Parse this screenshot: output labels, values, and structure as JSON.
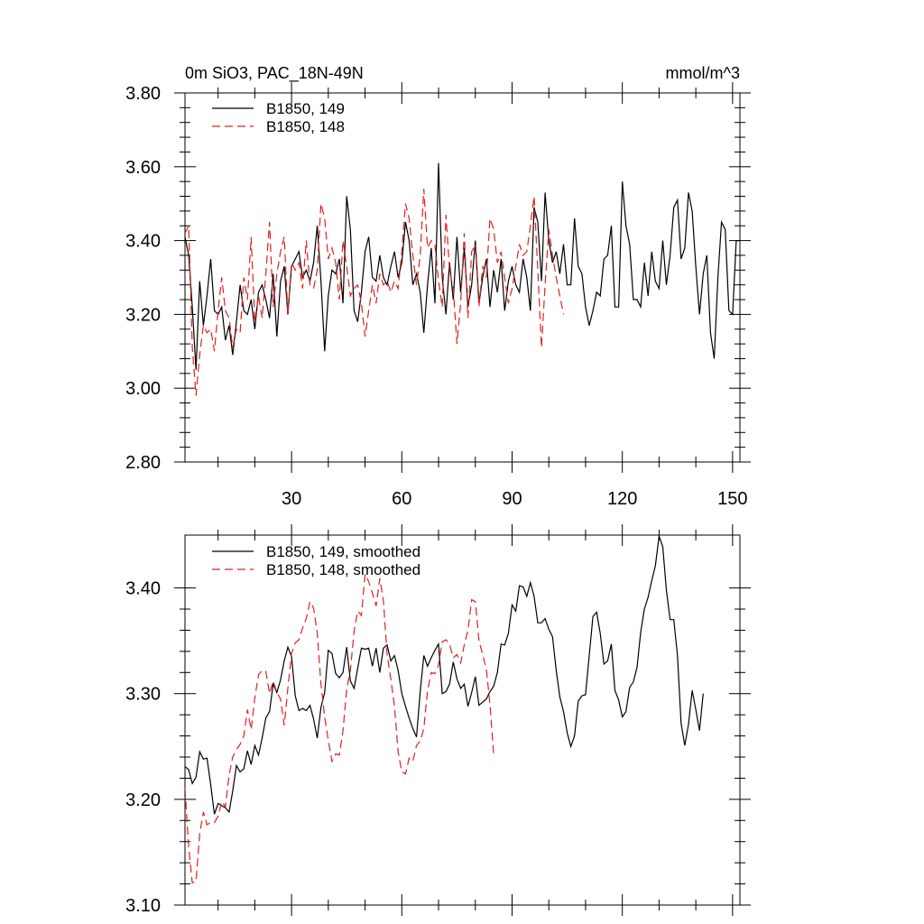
{
  "chart_data": [
    {
      "type": "line",
      "title_left": "0m SiO3, PAC_18N-49N",
      "title_right": "mmol/m^3",
      "xlabel": "",
      "ylabel": "",
      "xlim": [
        1,
        152
      ],
      "ylim": [
        2.8,
        3.8
      ],
      "x_ticks": [
        30,
        60,
        90,
        120,
        150
      ],
      "x_tick_labels": [
        "30",
        "60",
        "90",
        "120",
        "150"
      ],
      "y_ticks": [
        2.8,
        3.0,
        3.2,
        3.4,
        3.6,
        3.8
      ],
      "y_tick_labels": [
        "2.80",
        "3.00",
        "3.20",
        "3.40",
        "3.60",
        "3.80"
      ],
      "legend_position": "top-left",
      "series": [
        {
          "name": "B1850, 149",
          "color": "#000000",
          "dash": "solid",
          "values": [
            3.41,
            3.36,
            3.22,
            3.05,
            3.29,
            3.17,
            3.25,
            3.35,
            3.21,
            3.2,
            3.22,
            3.13,
            3.17,
            3.09,
            3.18,
            3.28,
            3.21,
            3.2,
            3.24,
            3.16,
            3.26,
            3.28,
            3.24,
            3.19,
            3.31,
            3.14,
            3.29,
            3.33,
            3.2,
            3.33,
            3.35,
            3.37,
            3.3,
            3.32,
            3.29,
            3.34,
            3.44,
            3.29,
            3.1,
            3.25,
            3.32,
            3.31,
            3.35,
            3.23,
            3.52,
            3.43,
            3.21,
            3.18,
            3.26,
            3.37,
            3.41,
            3.3,
            3.29,
            3.36,
            3.3,
            3.28,
            3.33,
            3.37,
            3.3,
            3.34,
            3.45,
            3.4,
            3.28,
            3.31,
            3.26,
            3.15,
            3.28,
            3.38,
            3.23,
            3.61,
            3.3,
            3.2,
            3.34,
            3.24,
            3.41,
            3.26,
            3.38,
            3.22,
            3.28,
            3.4,
            3.23,
            3.3,
            3.35,
            3.22,
            3.32,
            3.26,
            3.35,
            3.21,
            3.29,
            3.33,
            3.28,
            3.26,
            3.35,
            3.3,
            3.21,
            3.49,
            3.45,
            3.29,
            3.53,
            3.4,
            3.34,
            3.37,
            3.31,
            3.39,
            3.28,
            3.28,
            3.46,
            3.33,
            3.31,
            3.22,
            3.17,
            3.21,
            3.26,
            3.25,
            3.35,
            3.36,
            3.44,
            3.22,
            3.22,
            3.56,
            3.44,
            3.39,
            3.24,
            3.24,
            3.22,
            3.34,
            3.25,
            3.37,
            3.29,
            3.27,
            3.4,
            3.28,
            3.36,
            3.49,
            3.51,
            3.35,
            3.38,
            3.53,
            3.48,
            3.33,
            3.2,
            3.31,
            3.36,
            3.15,
            3.08,
            3.3,
            3.45,
            3.43,
            3.21,
            3.2,
            3.4,
            3.4
          ]
        },
        {
          "name": "B1850, 148",
          "color": "#e0201e",
          "dash": "dashed",
          "values": [
            3.42,
            3.44,
            3.11,
            2.98,
            3.09,
            3.17,
            3.15,
            3.16,
            3.1,
            3.21,
            3.3,
            3.21,
            3.19,
            3.11,
            3.16,
            3.15,
            3.3,
            3.24,
            3.41,
            3.18,
            3.25,
            3.19,
            3.31,
            3.45,
            3.22,
            3.31,
            3.37,
            3.41,
            3.2,
            3.34,
            3.32,
            3.34,
            3.27,
            3.4,
            3.28,
            3.27,
            3.32,
            3.5,
            3.46,
            3.35,
            3.38,
            3.34,
            3.24,
            3.4,
            3.33,
            3.25,
            3.27,
            3.28,
            3.23,
            3.14,
            3.21,
            3.28,
            3.23,
            3.31,
            3.28,
            3.29,
            3.26,
            3.29,
            3.27,
            3.37,
            3.5,
            3.46,
            3.36,
            3.28,
            3.36,
            3.54,
            3.38,
            3.4,
            3.39,
            3.29,
            3.22,
            3.47,
            3.32,
            3.27,
            3.12,
            3.23,
            3.42,
            3.19,
            3.37,
            3.39,
            3.22,
            3.33,
            3.3,
            3.46,
            3.43,
            3.34,
            3.37,
            3.3,
            3.23,
            3.27,
            3.33,
            3.39,
            3.36,
            3.37,
            3.44,
            3.52,
            3.32,
            3.11,
            3.28,
            3.43,
            3.36,
            3.3,
            3.25,
            3.2
          ]
        }
      ]
    },
    {
      "type": "line",
      "title_left": "",
      "title_right": "",
      "xlabel": "",
      "ylabel": "",
      "xlim": [
        1,
        152
      ],
      "ylim": [
        3.1,
        3.45
      ],
      "x_ticks": [
        30,
        60,
        90,
        120,
        150
      ],
      "x_tick_labels": [],
      "y_ticks": [
        3.1,
        3.2,
        3.3,
        3.4
      ],
      "y_tick_labels": [
        "3.10",
        "3.20",
        "3.30",
        "3.40"
      ],
      "legend_position": "top-left",
      "series": [
        {
          "name": "B1850, 149, smoothed",
          "color": "#000000",
          "dash": "solid",
          "values": [
            3.231,
            3.228,
            3.215,
            3.221,
            3.245,
            3.238,
            3.239,
            3.214,
            3.186,
            3.196,
            3.194,
            3.192,
            3.188,
            3.208,
            3.232,
            3.226,
            3.229,
            3.246,
            3.233,
            3.251,
            3.242,
            3.258,
            3.277,
            3.283,
            3.309,
            3.301,
            3.313,
            3.331,
            3.344,
            3.335,
            3.298,
            3.284,
            3.286,
            3.284,
            3.289,
            3.276,
            3.258,
            3.287,
            3.301,
            3.341,
            3.338,
            3.319,
            3.315,
            3.32,
            3.344,
            3.312,
            3.305,
            3.324,
            3.343,
            3.342,
            3.343,
            3.326,
            3.343,
            3.32,
            3.343,
            3.346,
            3.331,
            3.336,
            3.322,
            3.3,
            3.288,
            3.277,
            3.267,
            3.259,
            3.302,
            3.336,
            3.326,
            3.334,
            3.341,
            3.347,
            3.3,
            3.302,
            3.309,
            3.33,
            3.314,
            3.305,
            3.309,
            3.288,
            3.301,
            3.316,
            3.289,
            3.292,
            3.295,
            3.302,
            3.307,
            3.32,
            3.347,
            3.346,
            3.357,
            3.384,
            3.378,
            3.402,
            3.401,
            3.392,
            3.405,
            3.392,
            3.367,
            3.367,
            3.371,
            3.361,
            3.354,
            3.322,
            3.297,
            3.283,
            3.263,
            3.25,
            3.26,
            3.293,
            3.298,
            3.299,
            3.336,
            3.373,
            3.377,
            3.357,
            3.328,
            3.331,
            3.347,
            3.303,
            3.294,
            3.278,
            3.283,
            3.306,
            3.311,
            3.325,
            3.358,
            3.38,
            3.391,
            3.407,
            3.421,
            3.449,
            3.439,
            3.398,
            3.37,
            3.37,
            3.336,
            3.272,
            3.251,
            3.271,
            3.303,
            3.285,
            3.265,
            3.3
          ]
        },
        {
          "name": "B1850, 148, smoothed",
          "color": "#e0201e",
          "dash": "dashed",
          "values": [
            3.21,
            3.155,
            3.121,
            3.122,
            3.167,
            3.188,
            3.176,
            3.178,
            3.178,
            3.184,
            3.198,
            3.193,
            3.223,
            3.24,
            3.247,
            3.252,
            3.26,
            3.285,
            3.266,
            3.296,
            3.318,
            3.322,
            3.321,
            3.3,
            3.312,
            3.301,
            3.295,
            3.27,
            3.305,
            3.338,
            3.348,
            3.351,
            3.362,
            3.371,
            3.387,
            3.381,
            3.357,
            3.309,
            3.278,
            3.256,
            3.236,
            3.243,
            3.242,
            3.265,
            3.304,
            3.322,
            3.359,
            3.378,
            3.374,
            3.413,
            3.406,
            3.395,
            3.383,
            3.409,
            3.388,
            3.337,
            3.314,
            3.288,
            3.245,
            3.226,
            3.224,
            3.239,
            3.236,
            3.251,
            3.255,
            3.267,
            3.303,
            3.32,
            3.319,
            3.327,
            3.349,
            3.351,
            3.347,
            3.334,
            3.337,
            3.329,
            3.346,
            3.36,
            3.389,
            3.387,
            3.35,
            3.337,
            3.323,
            3.29,
            3.242
          ]
        }
      ]
    }
  ]
}
